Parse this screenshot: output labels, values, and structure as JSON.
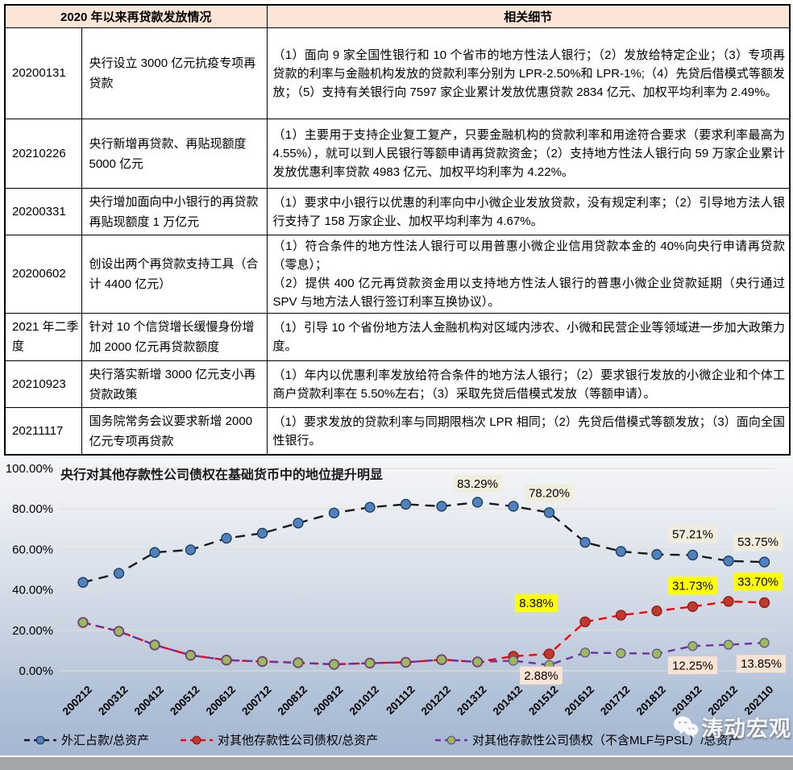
{
  "table": {
    "headers": [
      "2020 年以来再贷款发放情况",
      "相关细节"
    ],
    "rows": [
      {
        "date": "20200131",
        "event": "央行设立 3000 亿元抗疫专项再贷款",
        "details": "（1）面向 9 家全国性银行和 10 个省市的地方性法人银行；（2）发放给特定企业；（3）专项再贷款的利率与金融机构发放的贷款利率分别为 LPR-2.50%和 LPR-1%;（4）先贷后借模式等额发放；（5）支持有关银行向 7597 家企业累计发放优惠贷款 2834 亿元、加权平均利率为 2.49%。"
      },
      {
        "date": "20210226",
        "event": "央行新增再贷款、再贴现额度 5000 亿元",
        "details": "（1）主要用于支持企业复工复产，只要金融机构的贷款利率和用途符合要求（要求利率最高为 4.55%），就可以到人民银行等额申请再贷款资金；（2）支持地方性法人银行向 59 万家企业累计发放优惠利率贷款 4983 亿元、加权平均利率为 4.22%。"
      },
      {
        "date": "20200331",
        "event": "央行增加面向中小银行的再贷款再贴现额度 1 万亿元",
        "details": "（1）要求中小银行以优惠的利率向中小微企业发放贷款，没有规定利率；（2）引导地方法人银行支持了 158 万家企业、加权平均利率为 4.67%。"
      },
      {
        "date": "20200602",
        "event": "创设出两个再贷款支持工具（合计 4400 亿元）",
        "details": "（1）符合条件的地方性法人银行可以用普惠小微企业信用贷款本金的 40%向央行申请再贷款（零息）；\n（2）提供 400 亿元再贷款资金用以支持地方性法人银行的普惠小微企业贷款延期（央行通过 SPV 与地方法人银行签订利率互换协议）。"
      },
      {
        "date": "2021 年二季度",
        "event": "针对 10 个信贷增长缓慢身份增加 2000 亿元再贷款额度",
        "details": "（1）引导 10 个省份地方法人金融机构对区域内涉农、小微和民营企业等领域进一步加大政策力度。"
      },
      {
        "date": "20210923",
        "event": "央行落实新增 3000 亿元支小再贷款政策",
        "details": "（1）年内以优惠利率发放给符合条件的地方法人银行；（2）要求银行发放的小微企业和个体工商户贷款利率在 5.50%左右；（3）采取先贷后借模式发放（等额申请）。"
      },
      {
        "date": "20211117",
        "event": "国务院常务会议要求新增 2000 亿元专项再贷款",
        "details": "（1）要求发放的贷款利率与同期限档次 LPR 相同；（2）先贷后借模式等额发放；（3）面向全国性银行。"
      }
    ]
  },
  "chart_data": {
    "type": "line",
    "title": "央行对其他存款性公司债权在基础货币中的地位提升明显",
    "categories": [
      "200212",
      "200312",
      "200412",
      "200512",
      "200612",
      "200712",
      "200812",
      "200912",
      "201012",
      "201112",
      "201212",
      "201312",
      "201412",
      "201512",
      "201612",
      "201712",
      "201812",
      "201912",
      "202012",
      "202110"
    ],
    "series": [
      {
        "name": "外汇占款/总资产",
        "line_color": "#1a1a1a",
        "marker_color": "#4f81bd",
        "marker_stroke": "#17375e",
        "values": [
          43.7,
          48.2,
          58.5,
          59.8,
          65.5,
          68.0,
          73.0,
          78.0,
          80.8,
          82.3,
          81.3,
          83.29,
          81.3,
          78.2,
          63.5,
          59.0,
          57.5,
          57.21,
          54.3,
          53.75
        ]
      },
      {
        "name": "对其他存款性公司债权/总资产",
        "line_color": "#ff0000",
        "marker_color": "#c0392b",
        "marker_stroke": "#8b1a1a",
        "values": [
          23.9,
          19.5,
          12.8,
          7.7,
          5.3,
          4.6,
          4.0,
          3.2,
          3.8,
          4.2,
          5.5,
          4.4,
          7.2,
          8.38,
          24.2,
          27.5,
          29.6,
          31.73,
          34.3,
          33.7
        ]
      },
      {
        "name": "对其他存款性公司债权（不含MLF与PSL）/总资产",
        "line_color": "#7030a0",
        "marker_color": "#9bbb59",
        "marker_stroke": "#6a4f8f",
        "values": [
          23.9,
          19.5,
          12.8,
          7.7,
          5.3,
          4.6,
          4.0,
          3.2,
          3.8,
          4.2,
          5.5,
          4.4,
          5.0,
          2.88,
          9.0,
          8.7,
          8.5,
          12.25,
          12.9,
          13.85
        ]
      }
    ],
    "ylim": [
      0,
      100
    ],
    "yticks": [
      "100.00%",
      "80.00%",
      "60.00%",
      "40.00%",
      "20.00%",
      "0.00%"
    ],
    "grid": true,
    "legend_position": "bottom",
    "annotations": [
      {
        "series": 0,
        "category": "201312",
        "value": 83.29,
        "text": "83.29%",
        "bg": "cream"
      },
      {
        "series": 0,
        "category": "201512",
        "value": 78.2,
        "text": "78.20%",
        "bg": "cream"
      },
      {
        "series": 0,
        "category": "201912",
        "value": 57.21,
        "text": "57.21%",
        "bg": "cream"
      },
      {
        "series": 0,
        "category": "202110",
        "value": 53.75,
        "text": "53.75%",
        "bg": "cream"
      },
      {
        "series": 1,
        "category": "201512",
        "value": 8.38,
        "text": "8.38%",
        "bg": "yellow"
      },
      {
        "series": 1,
        "category": "201912",
        "value": 31.73,
        "text": "31.73%",
        "bg": "yellow"
      },
      {
        "series": 1,
        "category": "202110",
        "value": 33.7,
        "text": "33.70%",
        "bg": "yellow"
      },
      {
        "series": 2,
        "category": "201512",
        "value": 2.88,
        "text": "2.88%",
        "bg": "pink"
      },
      {
        "series": 2,
        "category": "201912",
        "value": 12.25,
        "text": "12.25%",
        "bg": "pink"
      },
      {
        "series": 2,
        "category": "202110",
        "value": 13.85,
        "text": "13.85%",
        "bg": "pink"
      }
    ],
    "annotation_bg_colors": {
      "cream": "#f1eddc",
      "yellow": "#ffff00",
      "pink": "#fbe3d4"
    }
  },
  "watermark": {
    "label": "涛动宏观",
    "icon": "wechat-chat-icon"
  },
  "colors": {
    "table_header_bg": "#fbe5d6",
    "divider_gray": "#a3a6a9"
  }
}
